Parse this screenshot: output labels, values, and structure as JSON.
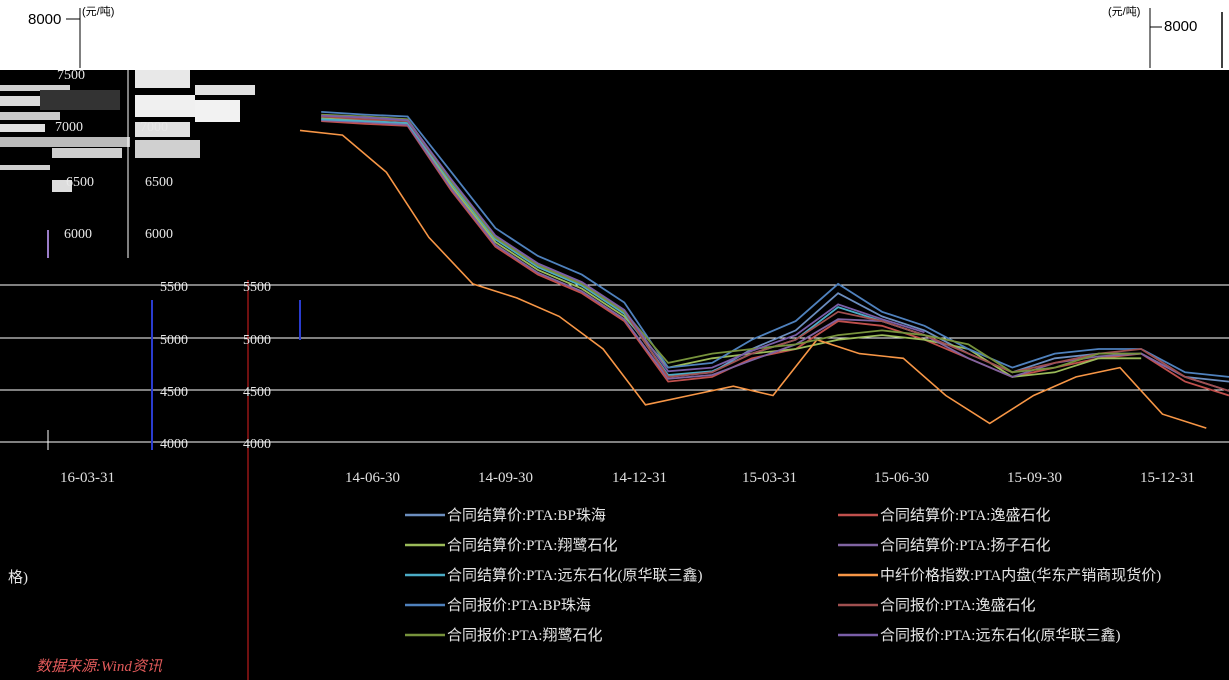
{
  "units": {
    "left": "(元/吨)",
    "right": "(元/吨)"
  },
  "top_tick": {
    "left": "8000",
    "right": "8000"
  },
  "source": "数据来源:Wind资讯",
  "left_fragment": "格)",
  "chart_data": {
    "type": "line",
    "y_unit": "元/吨",
    "ylim": [
      4000,
      8000
    ],
    "y_ticks_upper_left": [
      "7500",
      "7000",
      "6500",
      "6000"
    ],
    "y_ticks_upper_mid": [
      "7500",
      "7000",
      "6500",
      "6000"
    ],
    "y_ticks_lower_left": [
      "5500",
      "5000",
      "4500",
      "4000"
    ],
    "y_ticks_lower_mid": [
      "5500",
      "5000",
      "4500",
      "4000"
    ],
    "x_ticks": [
      "14-06-30",
      "14-09-30",
      "14-12-31",
      "15-03-31",
      "15-06-30",
      "15-09-30",
      "15-12-31"
    ],
    "x_ticks_left": [
      "16-03-31"
    ],
    "grid": true,
    "legend_position": "bottom",
    "series": [
      {
        "name": "合同结算价:PTA:BP珠海",
        "color": "#6c8ebf",
        "x": [
          "14-04-30",
          "14-05-31",
          "14-06-30",
          "14-07-31",
          "14-08-31",
          "14-09-30",
          "14-10-31",
          "14-11-30",
          "14-12-31",
          "15-01-31",
          "15-02-28",
          "15-03-31",
          "15-04-30",
          "15-05-31",
          "15-06-30",
          "15-07-31",
          "15-08-31",
          "15-09-30",
          "15-10-31",
          "15-11-30",
          "15-12-31",
          "16-01-31"
        ],
        "y": [
          7500,
          7480,
          7450,
          6800,
          6200,
          5900,
          5700,
          5400,
          4700,
          4750,
          5000,
          5200,
          5600,
          5350,
          5200,
          4950,
          4750,
          4900,
          4950,
          4950,
          4700,
          4650
        ]
      },
      {
        "name": "合同结算价:PTA:逸盛石化",
        "color": "#c0504d",
        "x": [
          "14-04-30",
          "14-05-31",
          "14-06-30",
          "14-07-31",
          "14-08-31",
          "14-09-30",
          "14-10-31",
          "14-11-30",
          "14-12-31",
          "15-01-31",
          "15-02-28",
          "15-03-31",
          "15-04-30",
          "15-05-31",
          "15-06-30",
          "15-07-31",
          "15-08-31",
          "15-09-30",
          "15-10-31",
          "15-11-30",
          "15-12-31",
          "16-01-31"
        ],
        "y": [
          7450,
          7420,
          7400,
          6700,
          6100,
          5800,
          5600,
          5300,
          4650,
          4700,
          4900,
          5000,
          5300,
          5250,
          5100,
          4900,
          4700,
          4800,
          4900,
          4950,
          4650,
          4500
        ]
      },
      {
        "name": "合同结算价:PTA:翔鹭石化",
        "color": "#9bbb59",
        "x": [
          "14-04-30",
          "14-05-31",
          "14-06-30",
          "14-07-31",
          "14-08-31",
          "14-09-30",
          "14-10-31",
          "14-11-30",
          "14-12-31",
          "15-01-31",
          "15-02-28",
          "15-03-31",
          "15-04-30",
          "15-05-31",
          "15-06-30",
          "15-07-31",
          "15-08-31",
          "15-09-30",
          "15-10-31",
          "15-11-30"
        ],
        "y": [
          7480,
          7460,
          7420,
          6750,
          6150,
          5850,
          5650,
          5350,
          4800,
          4900,
          4950,
          5000,
          5100,
          5150,
          5100,
          5000,
          4700,
          4750,
          4900,
          4900
        ]
      },
      {
        "name": "合同结算价:PTA:扬子石化",
        "color": "#8064a2",
        "x": [
          "14-04-30",
          "14-05-31",
          "14-06-30",
          "14-07-31",
          "14-08-31",
          "14-09-30",
          "14-10-31",
          "14-11-30",
          "14-12-31",
          "15-01-31",
          "15-02-28",
          "15-03-31",
          "15-04-30",
          "15-05-31",
          "15-06-30",
          "15-07-31",
          "15-08-31",
          "15-09-30",
          "15-10-31",
          "15-11-30",
          "15-12-31",
          "16-01-31"
        ],
        "y": [
          7460,
          7440,
          7410,
          6720,
          6120,
          5820,
          5620,
          5320,
          4680,
          4720,
          4880,
          5050,
          5320,
          5300,
          5150,
          4900,
          4700,
          4850,
          4920,
          4950,
          4700,
          4550
        ]
      },
      {
        "name": "合同结算价:PTA:远东石化(原华联三鑫)",
        "color": "#4bacc6",
        "x": [
          "14-04-30",
          "14-05-31",
          "14-06-30",
          "14-07-31",
          "14-08-31",
          "14-09-30",
          "14-10-31",
          "14-11-30",
          "14-12-31",
          "15-01-31",
          "15-02-28",
          "15-03-31",
          "15-04-30",
          "15-05-31",
          "15-06-30"
        ],
        "y": [
          7470,
          7450,
          7430,
          6780,
          6180,
          5880,
          5680,
          5380,
          4720,
          4760,
          4950,
          5100,
          5450,
          5300,
          5150
        ]
      },
      {
        "name": "中纤价格指数:PTA内盘(华东产销商现货价)",
        "color": "#f79646",
        "x": [
          "14-04-15",
          "14-05-15",
          "14-06-15",
          "14-07-15",
          "14-08-15",
          "14-09-15",
          "14-10-15",
          "14-11-15",
          "14-12-15",
          "15-01-15",
          "15-02-15",
          "15-03-15",
          "15-04-15",
          "15-05-15",
          "15-06-15",
          "15-07-15",
          "15-08-15",
          "15-09-15",
          "15-10-15",
          "15-11-15",
          "15-12-15",
          "16-01-15"
        ],
        "y": [
          7350,
          7300,
          6900,
          6200,
          5700,
          5550,
          5350,
          5000,
          4400,
          4500,
          4600,
          4500,
          5100,
          4950,
          4900,
          4500,
          4200,
          4500,
          4700,
          4800,
          4300,
          4150
        ]
      },
      {
        "name": "合同报价:PTA:BP珠海",
        "color": "#4f81bd",
        "x": [
          "14-04-30",
          "14-05-31",
          "14-06-30",
          "14-07-31",
          "14-08-31",
          "14-09-30",
          "14-10-31",
          "14-11-30",
          "14-12-31",
          "15-01-31",
          "15-02-28",
          "15-03-31",
          "15-04-30",
          "15-05-31",
          "15-06-30",
          "15-07-31",
          "15-08-31",
          "15-09-30",
          "15-10-31",
          "15-11-30",
          "15-12-31",
          "16-01-31"
        ],
        "y": [
          7550,
          7520,
          7500,
          6900,
          6300,
          6000,
          5800,
          5500,
          4800,
          4850,
          5100,
          5300,
          5700,
          5400,
          5250,
          5000,
          4800,
          4950,
          5000,
          5000,
          4750,
          4700
        ]
      },
      {
        "name": "合同报价:PTA:逸盛石化",
        "color": "#a05050",
        "x": [
          "14-04-30",
          "14-05-31",
          "14-06-30",
          "14-07-31",
          "14-08-31",
          "14-09-30",
          "14-10-31",
          "14-11-30",
          "14-12-31",
          "15-01-31",
          "15-02-28",
          "15-03-31",
          "15-04-30",
          "15-05-31",
          "15-06-30",
          "15-07-31",
          "15-08-31",
          "15-09-30",
          "15-10-31",
          "15-11-30",
          "15-12-31",
          "16-01-31"
        ],
        "y": [
          7500,
          7470,
          7450,
          6800,
          6200,
          5900,
          5700,
          5400,
          4700,
          4750,
          4950,
          5100,
          5400,
          5300,
          5150,
          4950,
          4750,
          4850,
          4950,
          5000,
          4700,
          4550
        ]
      },
      {
        "name": "合同报价:PTA:翔鹭石化",
        "color": "#77933c",
        "x": [
          "14-04-30",
          "14-05-31",
          "14-06-30",
          "14-07-31",
          "14-08-31",
          "14-09-30",
          "14-10-31",
          "14-11-30",
          "14-12-31",
          "15-01-31",
          "15-02-28",
          "15-03-31",
          "15-04-30",
          "15-05-31",
          "15-06-30",
          "15-07-31",
          "15-08-31",
          "15-09-30",
          "15-10-31",
          "15-11-30"
        ],
        "y": [
          7520,
          7500,
          7470,
          6800,
          6200,
          5900,
          5700,
          5400,
          4850,
          4950,
          5000,
          5050,
          5150,
          5200,
          5150,
          5050,
          4750,
          4800,
          4950,
          4950
        ]
      },
      {
        "name": "合同报价:PTA:远东石化(原华联三鑫)",
        "color": "#7a5ea8",
        "x": [
          "14-04-30",
          "14-05-31",
          "14-06-30",
          "14-07-31",
          "14-08-31",
          "14-09-30",
          "14-10-31",
          "14-11-30",
          "14-12-31",
          "15-01-31",
          "15-02-28",
          "15-03-31",
          "15-04-30",
          "15-05-31",
          "15-06-30"
        ],
        "y": [
          7510,
          7490,
          7460,
          6820,
          6220,
          5920,
          5720,
          5420,
          4760,
          4800,
          4980,
          5150,
          5480,
          5320,
          5180
        ]
      }
    ]
  }
}
